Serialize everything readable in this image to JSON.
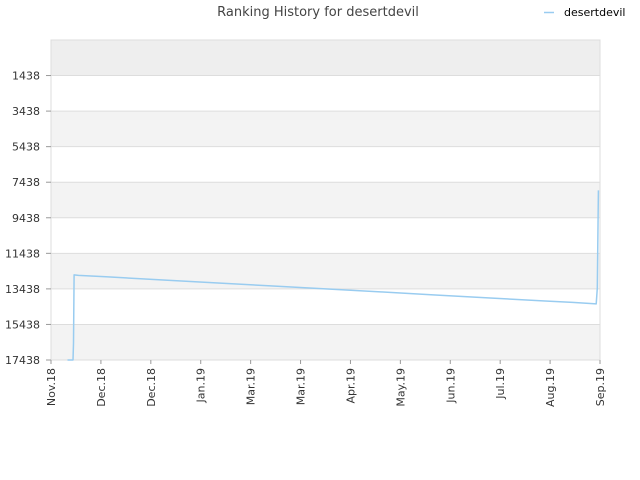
{
  "chart_data": {
    "type": "line",
    "title": "Ranking History for desertdevil",
    "xlabel": "",
    "ylabel": "",
    "y_inverted": true,
    "ylim": [
      17438,
      -561
    ],
    "y_ticks": [
      1438,
      3438,
      5438,
      7438,
      9438,
      11438,
      13438,
      15438,
      17438
    ],
    "x_ticks": [
      "Nov.18",
      "Dec.18",
      "Dec.18",
      "Jan.19",
      "Mar.19",
      "Mar.19",
      "Apr.19",
      "May.19",
      "Jun.19",
      "Jul.19",
      "Aug.19",
      "Sep.19"
    ],
    "grid": true,
    "legend_position": "top-right",
    "series": [
      {
        "name": "desertdevil",
        "color": "#99ccf0",
        "points": [
          [
            0.03,
            17438
          ],
          [
            0.04,
            17438
          ],
          [
            0.041,
            16500
          ],
          [
            0.042,
            12650
          ],
          [
            0.05,
            12680
          ],
          [
            0.1,
            12760
          ],
          [
            0.2,
            12930
          ],
          [
            0.3,
            13100
          ],
          [
            0.4,
            13270
          ],
          [
            0.5,
            13440
          ],
          [
            0.6,
            13610
          ],
          [
            0.7,
            13780
          ],
          [
            0.8,
            13950
          ],
          [
            0.9,
            14120
          ],
          [
            0.95,
            14200
          ],
          [
            0.993,
            14280
          ],
          [
            0.995,
            13400
          ],
          [
            0.997,
            7900
          ]
        ]
      }
    ]
  }
}
